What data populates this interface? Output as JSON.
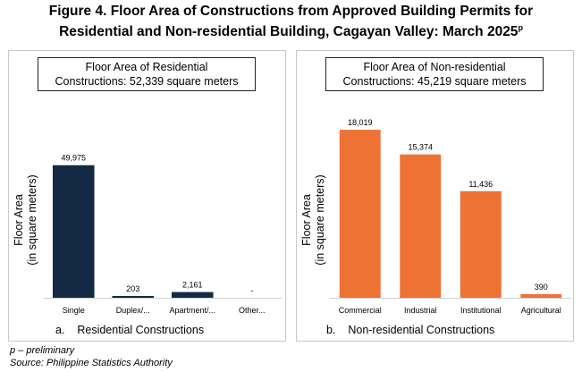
{
  "title": {
    "line1": "Figure 4. Floor Area of Constructions from Approved Building Permits for",
    "line2": "Residential and Non-residential Building, Cagayan Valley: March 2025",
    "superscript": "p"
  },
  "footnotes": {
    "preliminary": "p – preliminary",
    "source": "Source: Philippine Statistics Authority"
  },
  "chart_data": [
    {
      "type": "bar",
      "box_title_line1": "Floor Area of Residential",
      "box_title_line2": "Constructions: 52,339 square meters",
      "ylabel_line1": "Floor Area",
      "ylabel_line2": "(in square meters)",
      "caption_marker": "a.",
      "caption": "Residential Constructions",
      "categories": [
        "Single",
        "Duplex/...",
        "Apartment/...",
        "Other..."
      ],
      "values": [
        49975,
        203,
        2161,
        0
      ],
      "data_labels": [
        "49,975",
        "203",
        "2,161",
        "-"
      ],
      "color": "#142a44",
      "ylim": [
        0,
        60000
      ],
      "grid": false
    },
    {
      "type": "bar",
      "box_title_line1": "Floor Area of Non-residential",
      "box_title_line2": "Constructions: 45,219 square meters",
      "ylabel_line1": "Floor Area",
      "ylabel_line2": "(in square meters)",
      "caption_marker": "b.",
      "caption": "Non-residential Constructions",
      "categories": [
        "Commercial",
        "Industrial",
        "Institutional",
        "Agricultural"
      ],
      "values": [
        18019,
        15374,
        11436,
        390
      ],
      "data_labels": [
        "18,019",
        "15,374",
        "11,436",
        "390"
      ],
      "color": "#ed7234",
      "ylim": [
        0,
        18800
      ],
      "grid": false
    }
  ]
}
